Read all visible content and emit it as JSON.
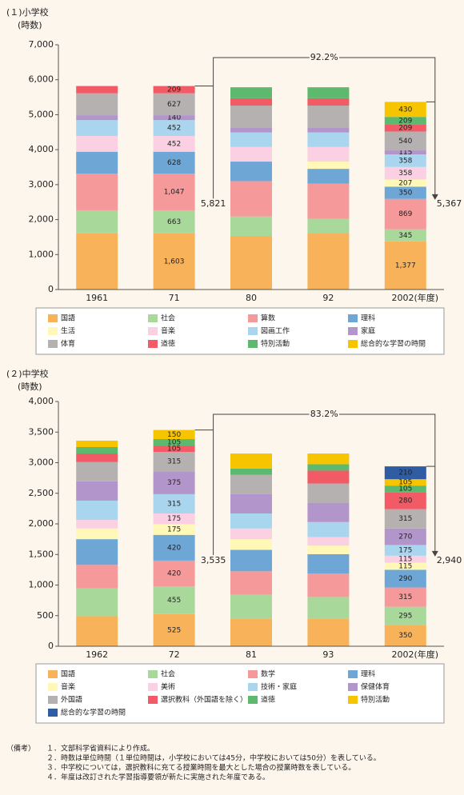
{
  "chart_data": [
    {
      "type": "bar",
      "stacked": true,
      "title": "(１)小学校",
      "ylabel": "(時数)",
      "categories": [
        "1961",
        "71",
        "80",
        "92",
        "2002(年度)"
      ],
      "ylim": [
        0,
        7000
      ],
      "yticks": [
        0,
        {
          "value": 1000,
          "label": "1,000"
        },
        {
          "value": 2000,
          "label": "2,000"
        },
        {
          "value": 3000,
          "label": "3,000"
        },
        {
          "value": 4000,
          "label": "4,000"
        },
        {
          "value": 5000,
          "label": "5,000"
        },
        {
          "value": 6000,
          "label": "6,000"
        },
        {
          "value": 7000,
          "label": "7,000"
        }
      ],
      "grid": false,
      "change_label": "92.2%",
      "totals": [
        {
          "value": 5821,
          "label": "5,821"
        },
        {
          "value": 5367,
          "label": "5,367"
        }
      ],
      "series": [
        {
          "name": "国語",
          "color": "#f8b25a",
          "values": [
            1603,
            1603,
            1532,
            1601,
            1377
          ],
          "value_labels": [
            null,
            "1,603",
            null,
            null,
            "1,377"
          ]
        },
        {
          "name": "社会",
          "color": "#a9d99a",
          "values": [
            663,
            663,
            558,
            420,
            345
          ],
          "value_labels": [
            null,
            "663",
            null,
            null,
            "345"
          ]
        },
        {
          "name": "算数",
          "color": "#f6999b",
          "values": [
            1047,
            1047,
            1011,
            1011,
            869
          ],
          "value_labels": [
            null,
            "1,047",
            null,
            null,
            "869"
          ]
        },
        {
          "name": "理科",
          "color": "#6ea6d6",
          "values": [
            628,
            628,
            558,
            420,
            350
          ],
          "value_labels": [
            null,
            "628",
            null,
            null,
            "350"
          ]
        },
        {
          "name": "生活",
          "color": "#fff8b6",
          "values": [
            null,
            null,
            null,
            207,
            207
          ],
          "value_labels": [
            null,
            null,
            null,
            null,
            "207"
          ]
        },
        {
          "name": "音楽",
          "color": "#fbd0e3",
          "values": [
            452,
            452,
            418,
            418,
            358
          ],
          "value_labels": [
            null,
            "452",
            null,
            null,
            "358"
          ]
        },
        {
          "name": "図画工作",
          "color": "#a9d5ee",
          "values": [
            452,
            452,
            418,
            418,
            358
          ],
          "value_labels": [
            null,
            "452",
            null,
            null,
            "358"
          ]
        },
        {
          "name": "家庭",
          "color": "#b296cb",
          "values": [
            140,
            140,
            140,
            140,
            115
          ],
          "value_labels": [
            null,
            "140",
            null,
            null,
            "115"
          ]
        },
        {
          "name": "体育",
          "color": "#b5b1b1",
          "values": [
            627,
            627,
            627,
            627,
            540
          ],
          "value_labels": [
            null,
            "627",
            null,
            null,
            "540"
          ]
        },
        {
          "name": "道徳",
          "color": "#f25b65",
          "values": [
            209,
            209,
            209,
            209,
            209
          ],
          "value_labels": [
            null,
            "209",
            null,
            null,
            "209"
          ]
        },
        {
          "name": "特別活動",
          "color": "#5db96d",
          "values": [
            null,
            null,
            314,
            314,
            209
          ],
          "value_labels": [
            null,
            null,
            null,
            null,
            "209"
          ]
        },
        {
          "name": "総合的な学習の時間",
          "color": "#f7c400",
          "values": [
            null,
            null,
            null,
            null,
            430
          ],
          "value_labels": [
            null,
            null,
            null,
            null,
            "430"
          ]
        }
      ]
    },
    {
      "type": "bar",
      "stacked": true,
      "title": "(２)中学校",
      "ylabel": "(時数)",
      "categories": [
        "1962",
        "72",
        "81",
        "93",
        "2002(年度)"
      ],
      "ylim": [
        0,
        4000
      ],
      "yticks": [
        0,
        500,
        {
          "value": 1000,
          "label": "1,000"
        },
        {
          "value": 1500,
          "label": "1,500"
        },
        {
          "value": 2000,
          "label": "2,000"
        },
        {
          "value": 2500,
          "label": "2,500"
        },
        {
          "value": 3000,
          "label": "3,000"
        },
        {
          "value": 3500,
          "label": "3,500"
        },
        {
          "value": 4000,
          "label": "4,000"
        }
      ],
      "grid": false,
      "change_label": "83.2%",
      "totals": [
        {
          "value": 3535,
          "label": "3,535"
        },
        {
          "value": 2940,
          "label": "2,940"
        }
      ],
      "series": [
        {
          "name": "国語",
          "color": "#f8b25a",
          "values": [
            490,
            525,
            455,
            455,
            350
          ],
          "value_labels": [
            null,
            "525",
            null,
            null,
            "350"
          ]
        },
        {
          "name": "社会",
          "color": "#a9d99a",
          "values": [
            455,
            455,
            385,
            350,
            295
          ],
          "value_labels": [
            null,
            "455",
            null,
            null,
            "295"
          ]
        },
        {
          "name": "数学",
          "color": "#f6999b",
          "values": [
            385,
            420,
            385,
            385,
            315
          ],
          "value_labels": [
            null,
            "420",
            null,
            null,
            "315"
          ]
        },
        {
          "name": "理科",
          "color": "#6ea6d6",
          "values": [
            420,
            420,
            350,
            315,
            290
          ],
          "value_labels": [
            null,
            "420",
            null,
            null,
            "290"
          ]
        },
        {
          "name": "音楽",
          "color": "#fff8b6",
          "values": [
            175,
            175,
            175,
            140,
            115
          ],
          "value_labels": [
            null,
            "175",
            null,
            null,
            "115"
          ]
        },
        {
          "name": "美術",
          "color": "#fbd0e3",
          "values": [
            140,
            175,
            175,
            140,
            115
          ],
          "value_labels": [
            null,
            "175",
            null,
            null,
            "115"
          ]
        },
        {
          "name": "技術・家庭",
          "color": "#a9d5ee",
          "values": [
            315,
            315,
            245,
            245,
            175
          ],
          "value_labels": [
            null,
            "315",
            null,
            null,
            "175"
          ]
        },
        {
          "name": "保健体育",
          "color": "#b296cb",
          "values": [
            315,
            375,
            315,
            315,
            270
          ],
          "value_labels": [
            null,
            "375",
            null,
            null,
            "270"
          ]
        },
        {
          "name": "外国語",
          "color": "#b5b1b1",
          "values": [
            315,
            315,
            315,
            315,
            315
          ],
          "value_labels": [
            null,
            "315",
            null,
            null,
            "315"
          ]
        },
        {
          "name": "選択教科（外国語を除く）",
          "color": "#f25b65",
          "values": [
            140,
            105,
            null,
            210,
            280
          ],
          "value_labels": [
            null,
            "105",
            null,
            null,
            "280"
          ]
        },
        {
          "name": "道徳",
          "color": "#5db96d",
          "values": [
            105,
            105,
            105,
            105,
            105
          ],
          "value_labels": [
            null,
            "105",
            null,
            null,
            "105"
          ]
        },
        {
          "name": "特別活動",
          "color": "#f7c400",
          "values": [
            105,
            150,
            245,
            175,
            105
          ],
          "value_labels": [
            null,
            "150",
            null,
            null,
            "105"
          ]
        },
        {
          "name": "総合的な学習の時間",
          "color": "#2f5ca3",
          "values": [
            null,
            null,
            null,
            null,
            210
          ],
          "value_labels": [
            null,
            null,
            null,
            null,
            "210"
          ]
        }
      ]
    }
  ],
  "notes_label": "（備考）",
  "notes": [
    "１．文部科学省資料により作成。",
    "２．時数は単位時間（１単位時間は，小学校においては45分，中学校においては50分）を表している。",
    "３．中学校については，選択教科に充てる授業時間を最大とした場合の授業時数を表している。",
    "４．年度は改訂された学習指導要領が新たに実施された年度である。"
  ]
}
